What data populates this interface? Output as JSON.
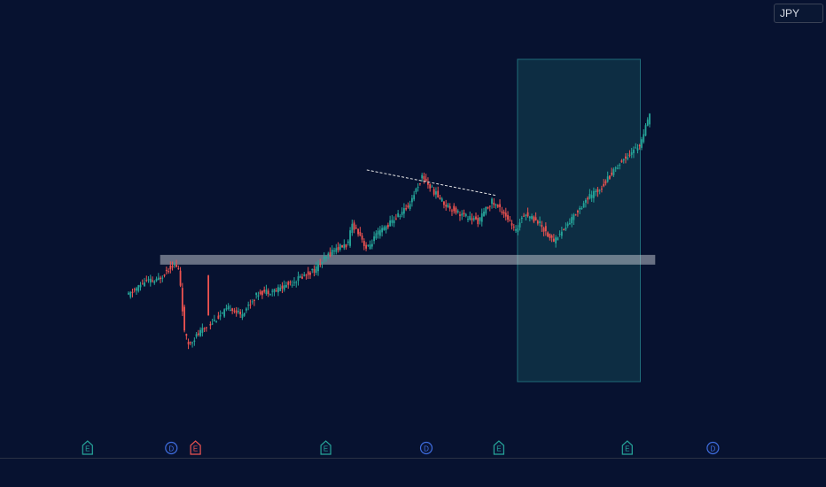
{
  "currency_label": "JPY",
  "colors": {
    "background": "#071230",
    "up": "#26a69a",
    "down": "#ef5350",
    "support_zone": "#c9ced6",
    "projection_zone": "#0e3346",
    "projection_border": "#1f6b78",
    "trendline": "#e6e6e6",
    "earnings_marker": "#26a69a",
    "earnings_marker_red": "#ef5350",
    "dividend_marker": "#3f6ee0"
  },
  "chart_data": {
    "type": "candlestick",
    "title": "",
    "xlabel": "",
    "ylabel": "",
    "ylim": [
      0,
      100
    ],
    "grid": false,
    "candles_shown": 262,
    "key_levels": [
      [
        0,
        29
      ],
      [
        9,
        34
      ],
      [
        15,
        34
      ],
      [
        24,
        40
      ],
      [
        27,
        38
      ],
      [
        28,
        32
      ],
      [
        30,
        16
      ],
      [
        32,
        12
      ],
      [
        40,
        17
      ],
      [
        55,
        25
      ],
      [
        60,
        22
      ],
      [
        70,
        30
      ],
      [
        80,
        31
      ],
      [
        100,
        38
      ],
      [
        110,
        45
      ],
      [
        118,
        47
      ],
      [
        120,
        54
      ],
      [
        124,
        51
      ],
      [
        128,
        45
      ],
      [
        133,
        50
      ],
      [
        150,
        60
      ],
      [
        158,
        71
      ],
      [
        162,
        67
      ],
      [
        170,
        61
      ],
      [
        180,
        57
      ],
      [
        188,
        55
      ],
      [
        195,
        62
      ],
      [
        202,
        58
      ],
      [
        208,
        51
      ],
      [
        212,
        58
      ],
      [
        220,
        55
      ],
      [
        228,
        48
      ],
      [
        235,
        53
      ],
      [
        245,
        62
      ],
      [
        254,
        67
      ],
      [
        262,
        74
      ],
      [
        268,
        78
      ],
      [
        275,
        82
      ],
      [
        280,
        92
      ]
    ],
    "support_zone": {
      "low": 39.8,
      "high": 43.2,
      "from_index": 17,
      "to_index": 283
    },
    "trendline": {
      "start": [
        128,
        73
      ],
      "end": [
        198,
        64
      ]
    },
    "projection_box": {
      "from_index": 209,
      "to_index": 275
    },
    "event_markers": [
      {
        "type": "earnings",
        "label": "E",
        "index": -22
      },
      {
        "type": "dividend",
        "label": "D",
        "index": 23
      },
      {
        "type": "earnings",
        "label": "E",
        "index": 36,
        "color": "red"
      },
      {
        "type": "earnings",
        "label": "E",
        "index": 106
      },
      {
        "type": "dividend",
        "label": "D",
        "index": 160
      },
      {
        "type": "earnings",
        "label": "E",
        "index": 199
      },
      {
        "type": "earnings",
        "label": "E",
        "index": 268
      },
      {
        "type": "dividend",
        "label": "D",
        "index": 314
      }
    ]
  }
}
